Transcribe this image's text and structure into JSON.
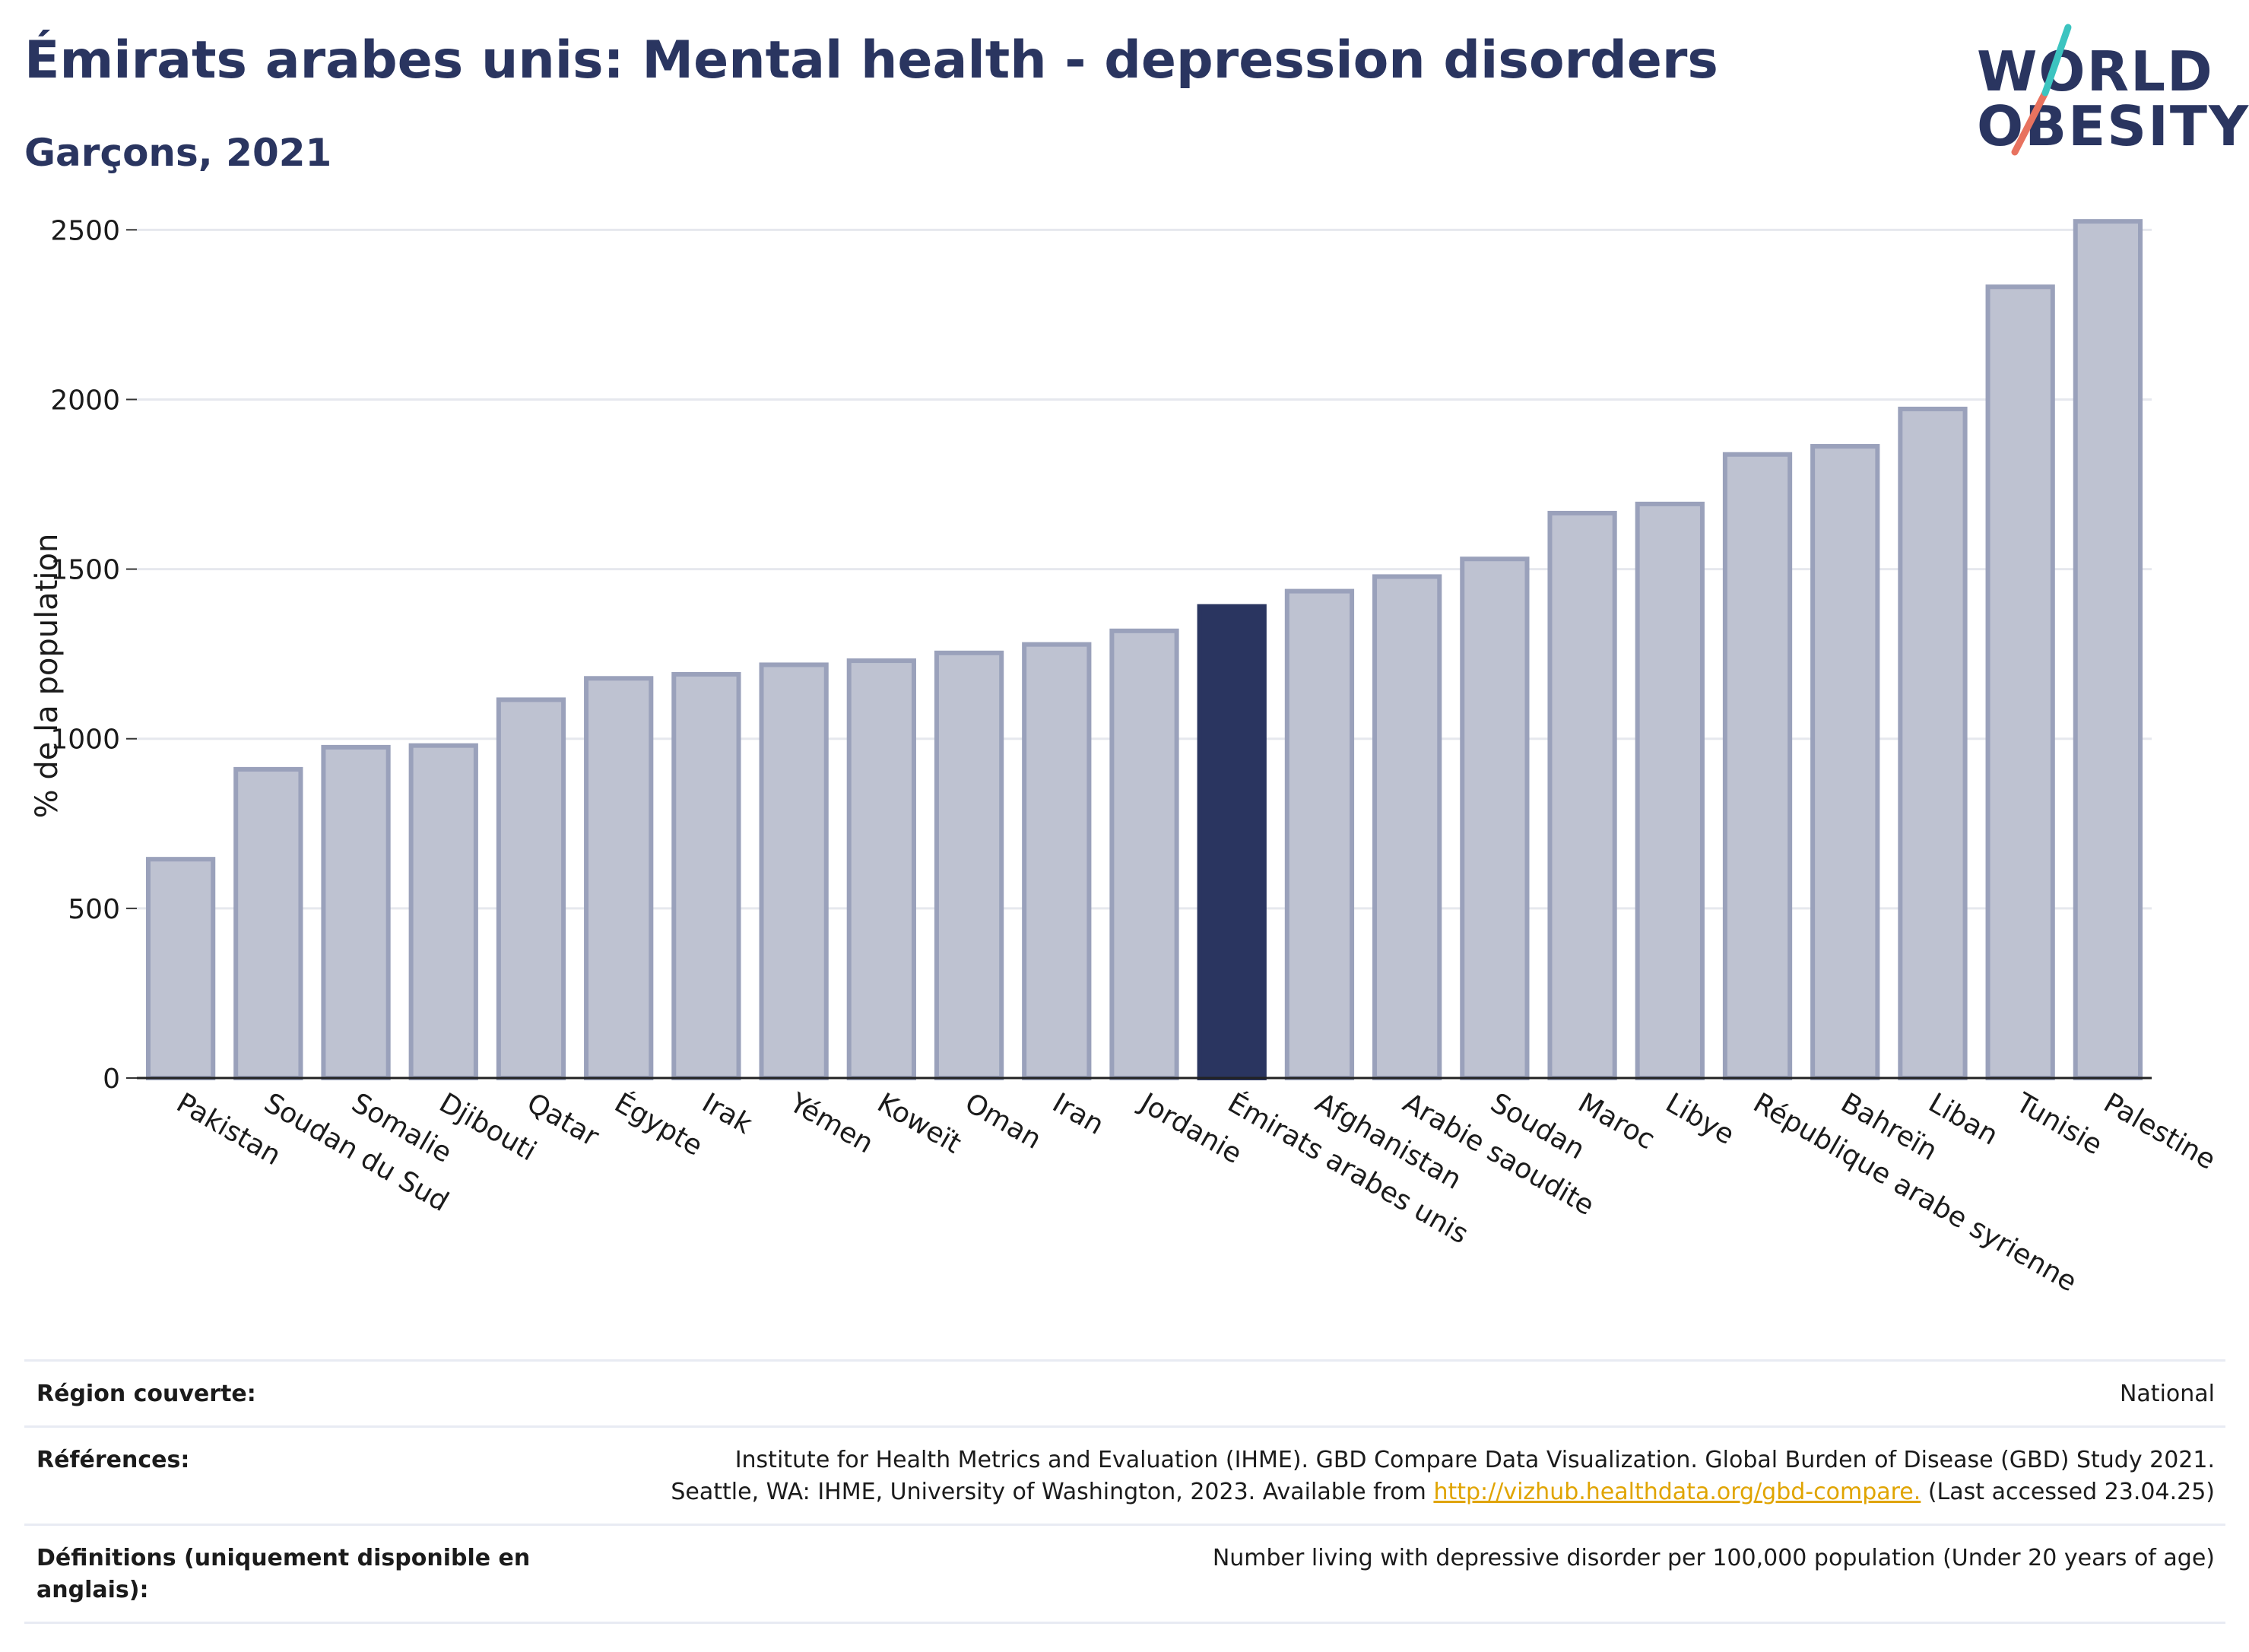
{
  "header": {
    "title": "Émirats arabes unis: Mental health - depression disorders",
    "subtitle": "Garçons, 2021"
  },
  "logo": {
    "line1": "WORLD",
    "line2": "OBESITY"
  },
  "chart_data": {
    "type": "bar",
    "categories": [
      "Pakistan",
      "Soudan du Sud",
      "Somalie",
      "Djibouti",
      "Qatar",
      "Égypte",
      "Irak",
      "Yémen",
      "Koweït",
      "Oman",
      "Iran",
      "Jordanie",
      "Émirats arabes unis",
      "Afghanistan",
      "Arabie saoudite",
      "Soudan",
      "Maroc",
      "Libye",
      "République arabe syrienne",
      "Bahreïn",
      "Liban",
      "Tunisie",
      "Palestine"
    ],
    "values": [
      645,
      910,
      975,
      980,
      1115,
      1178,
      1190,
      1218,
      1230,
      1253,
      1278,
      1318,
      1390,
      1435,
      1478,
      1530,
      1665,
      1692,
      1838,
      1862,
      1972,
      2332,
      2525
    ],
    "highlight": "Émirats arabes unis",
    "ylabel": "% de la population",
    "yticks": [
      0,
      500,
      1000,
      1500,
      2000,
      2500
    ],
    "ylim": [
      0,
      2550
    ],
    "grid": true,
    "colors": {
      "bar": "#bec2d1",
      "bar_edge": "#9aa1bb",
      "highlight": "#2a3560"
    }
  },
  "info": [
    {
      "label": "Région couverte:",
      "lines": [
        "National"
      ]
    },
    {
      "label": "Références:",
      "lines": [
        "Institute for Health Metrics and Evaluation (IHME). GBD Compare Data Visualization. Global Burden of Disease (GBD) Study 2021.",
        "Seattle, WA: IHME, University of Washington, 2023. Available from "
      ],
      "link": "http://vizhub.healthdata.org/gbd-compare.",
      "suffix": " (Last accessed 23.04.25)"
    },
    {
      "label": "Définitions (uniquement disponible en anglais):",
      "lines": [
        "Number living with depressive disorder per 100,000 population (Under 20 years of age)"
      ]
    }
  ]
}
